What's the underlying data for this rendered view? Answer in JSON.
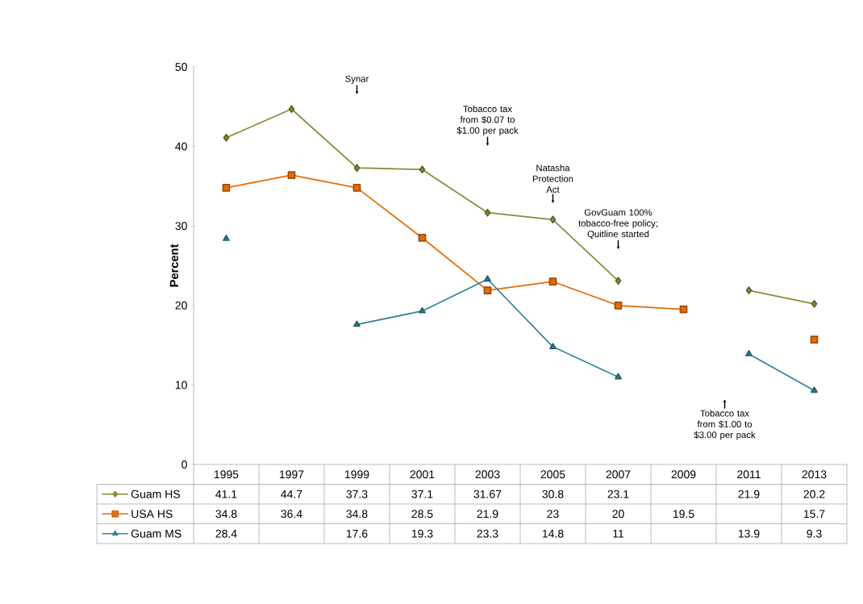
{
  "chart_data": {
    "type": "line",
    "ylabel": "Percent",
    "categories": [
      "1995",
      "1997",
      "1999",
      "2001",
      "2003",
      "2005",
      "2007",
      "2009",
      "2011",
      "2013"
    ],
    "series": [
      {
        "name": "Guam HS",
        "color": "#77933c",
        "marker": "diamond",
        "values": [
          41.1,
          44.7,
          37.3,
          37.1,
          31.67,
          30.8,
          23.1,
          null,
          21.9,
          20.2
        ]
      },
      {
        "name": "USA HS",
        "color": "#e46c0a",
        "marker": "square",
        "values": [
          34.8,
          36.4,
          34.8,
          28.5,
          21.9,
          23,
          20,
          19.5,
          null,
          15.7
        ]
      },
      {
        "name": "Guam MS",
        "color": "#31859c",
        "marker": "triangle",
        "values": [
          28.4,
          null,
          17.6,
          19.3,
          23.3,
          14.8,
          11,
          null,
          13.9,
          9.3
        ]
      }
    ],
    "ylim": [
      0,
      50
    ],
    "yticks": [
      0,
      10,
      20,
      30,
      40,
      50
    ],
    "grid": false,
    "legend": "bottom",
    "data_labels": true,
    "annotations": [
      "Synar",
      "Tobacco tax from $0.07 to $1.00 per pack",
      "Natasha Protection Act",
      "GovGuam 100% tobacco-free policy; Quitline started",
      "Tobacco tax from $1.00 to $3.00 per pack"
    ]
  }
}
